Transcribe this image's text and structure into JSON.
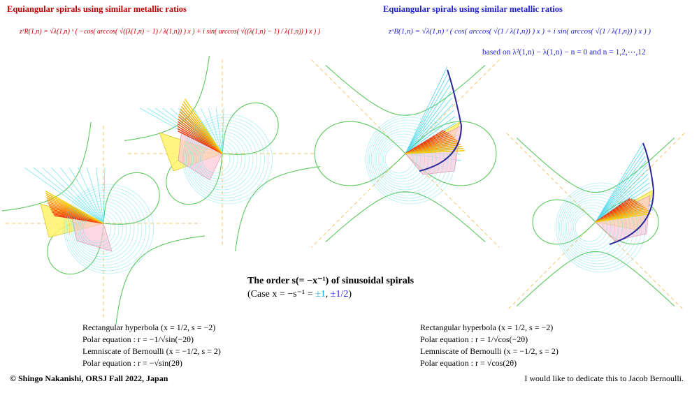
{
  "left_panel": {
    "title": "Equiangular spirals using similar metallic ratios",
    "formula": "zˣR(1,n) = √λ(1,n) ˣ ( −cos( arccos( √((λ(1,n) − 1) / λ(1,n)) ) x ) + i sin( arccos( √((λ(1,n) − 1) / λ(1,n)) ) x ) )",
    "notes": [
      "Rectangular hyperbola (x = 1/2,  s = −2)",
      "Polar equation :   r = −1/√sin(−2θ)",
      "Lemniscate of Bernoulli  (x = −1/2,  s = 2)",
      "Polar equation :   r = −√sin(2θ)"
    ]
  },
  "right_panel": {
    "title": "Equiangular spirals using similar metallic ratios",
    "formula": "zˣB(1,n) = √λ(1,n) ˣ ( cos( arccos( √(1 / λ(1,n)) ) x ) + i sin( arccos( √(1 / λ(1,n)) ) x ) )",
    "note": "based on λ²(1,n) − λ(1,n) − n = 0 and n = 1,2,⋯,12",
    "notes": [
      "Rectangular hyperbola (x = 1/2,  s = −2)",
      "Polar equation :   r = 1/√cos(−2θ)",
      "Lemniscate of Bernoulli  (x = −1/2,  s = 2)",
      "Polar equation :   r = √cos(2θ)"
    ]
  },
  "center": {
    "title": "The order s(= −x⁻¹) of sinusoidal spirals",
    "case": [
      "(Case x = −s⁻¹ = ",
      "±1",
      ", ",
      "±1/2",
      ")"
    ]
  },
  "footer": {
    "copyright": "© Shingo Nakanishi, ORSJ Fall 2022, Japan",
    "dedication": "I would like to dedicate this to Jacob Bernoulli."
  }
}
